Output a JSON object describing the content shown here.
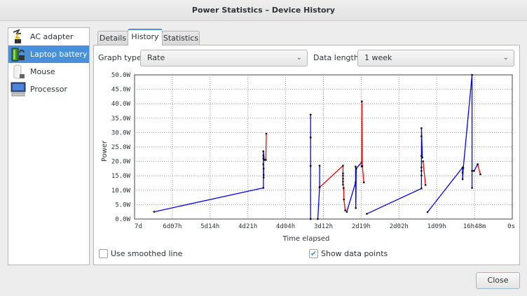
{
  "window": {
    "title": "Power Statistics – Device History"
  },
  "sidebar": {
    "items": [
      {
        "label": "AC adapter",
        "icon": "ac-adapter-icon",
        "selected": false
      },
      {
        "label": "Laptop battery",
        "icon": "battery-icon",
        "selected": true
      },
      {
        "label": "Mouse",
        "icon": "mouse-icon",
        "selected": false
      },
      {
        "label": "Processor",
        "icon": "computer-icon",
        "selected": false
      }
    ]
  },
  "tabs": [
    {
      "label": "Details"
    },
    {
      "label": "History",
      "active": true
    },
    {
      "label": "Statistics"
    }
  ],
  "controls": {
    "graph_type_label": "Graph type:",
    "graph_type_value": "Rate",
    "data_length_label": "Data length:",
    "data_length_value": "1 week",
    "smoothed_label": "Use smoothed line",
    "smoothed_checked": false,
    "points_label": "Show data points",
    "points_checked": true
  },
  "close_label": "Close",
  "colors": {
    "accent": "#4a90d9",
    "discharging": "#0000ff",
    "charging": "#ff0000"
  },
  "chart_data": {
    "type": "line",
    "xlabel": "Time elapsed",
    "ylabel": "Power",
    "x_units": "hours elapsed",
    "xlim": [
      168,
      0
    ],
    "ylim": [
      0,
      50
    ],
    "grid": true,
    "x_ticks": [
      {
        "value": 168,
        "label": "7d"
      },
      {
        "value": 151.2,
        "label": "6d07h"
      },
      {
        "value": 134.4,
        "label": "5d14h"
      },
      {
        "value": 117.6,
        "label": "4d21h"
      },
      {
        "value": 100.8,
        "label": "4d04h"
      },
      {
        "value": 84,
        "label": "3d12h"
      },
      {
        "value": 67.2,
        "label": "2d19h"
      },
      {
        "value": 50.4,
        "label": "2d02h"
      },
      {
        "value": 33.6,
        "label": "1d09h"
      },
      {
        "value": 16.8,
        "label": "16h48m"
      },
      {
        "value": 0,
        "label": "0s"
      }
    ],
    "y_ticks": [
      {
        "value": 0,
        "label": "0.0W"
      },
      {
        "value": 5,
        "label": "5.0W"
      },
      {
        "value": 10,
        "label": "10.0W"
      },
      {
        "value": 15,
        "label": "15.0W"
      },
      {
        "value": 20,
        "label": "20.0W"
      },
      {
        "value": 25,
        "label": "25.0W"
      },
      {
        "value": 30,
        "label": "30.0W"
      },
      {
        "value": 35,
        "label": "35.0W"
      },
      {
        "value": 40,
        "label": "40.0W"
      },
      {
        "value": 45,
        "label": "45.0W"
      },
      {
        "value": 50,
        "label": "50.0W"
      }
    ],
    "segments": [
      {
        "state": "discharging",
        "points": [
          [
            159.3,
            2.5
          ],
          [
            110.7,
            10.8
          ],
          [
            110.7,
            23.5
          ],
          [
            110.7,
            22
          ],
          [
            110.7,
            21
          ],
          [
            110.7,
            19
          ],
          [
            110.6,
            17.5
          ],
          [
            110.6,
            15.3
          ],
          [
            110.6,
            14.4
          ],
          [
            110.7,
            23.5
          ],
          [
            110.3,
            20.5
          ]
        ]
      },
      {
        "state": "charging",
        "points": [
          [
            109.6,
            20.5
          ],
          [
            109.4,
            29.6
          ]
        ]
      },
      {
        "state": "discharging",
        "points": [
          [
            89.7,
            36.2
          ],
          [
            89.7,
            28.3
          ],
          [
            89.7,
            18.4
          ],
          [
            89.7,
            0
          ]
        ]
      },
      {
        "state": "discharging",
        "points": [
          [
            86.5,
            0
          ],
          [
            85.7,
            11.1
          ],
          [
            85.7,
            18.5
          ]
        ]
      },
      {
        "state": "charging",
        "points": [
          [
            85.7,
            11
          ],
          [
            75.3,
            18.5
          ],
          [
            75.3,
            15.8
          ],
          [
            75.3,
            15
          ],
          [
            75.3,
            14
          ],
          [
            75.3,
            13
          ],
          [
            75.3,
            12
          ],
          [
            75.0,
            10.7
          ],
          [
            74.9,
            6.8
          ],
          [
            74.3,
            3
          ]
        ]
      },
      {
        "state": "discharging",
        "points": [
          [
            73.6,
            2.5
          ],
          [
            69.7,
            12.7
          ],
          [
            69.7,
            18.2
          ],
          [
            69.6,
            3.8
          ],
          [
            69.4,
            17.5
          ],
          [
            67.0,
            19.7
          ]
        ]
      },
      {
        "state": "charging",
        "points": [
          [
            67.0,
            18.3
          ],
          [
            66.9,
            40.8
          ],
          [
            66.7,
            18.3
          ],
          [
            66.0,
            12.7
          ]
        ]
      },
      {
        "state": "discharging",
        "points": [
          [
            64.7,
            1.8
          ],
          [
            40.4,
            10.6
          ],
          [
            40.4,
            15.1
          ],
          [
            40.4,
            16.7
          ],
          [
            40.4,
            17.9
          ],
          [
            40.4,
            21.9
          ],
          [
            40.4,
            28.7
          ],
          [
            40.4,
            31.5
          ],
          [
            40.0,
            21.3
          ]
        ]
      },
      {
        "state": "charging",
        "points": [
          [
            39.7,
            20
          ],
          [
            38.6,
            11.8
          ]
        ]
      },
      {
        "state": "discharging",
        "points": [
          [
            37.7,
            2.4
          ],
          [
            22.1,
            17.9
          ],
          [
            22.1,
            16.1
          ],
          [
            22.1,
            13.8
          ],
          [
            21.8,
            17.7
          ],
          [
            17.9,
            50
          ],
          [
            17.9,
            10.8
          ],
          [
            17.9,
            16.7
          ],
          [
            17.0,
            16.7
          ],
          [
            15.4,
            19
          ]
        ]
      },
      {
        "state": "charging",
        "points": [
          [
            15.4,
            19
          ],
          [
            14.2,
            15.5
          ]
        ]
      }
    ]
  }
}
